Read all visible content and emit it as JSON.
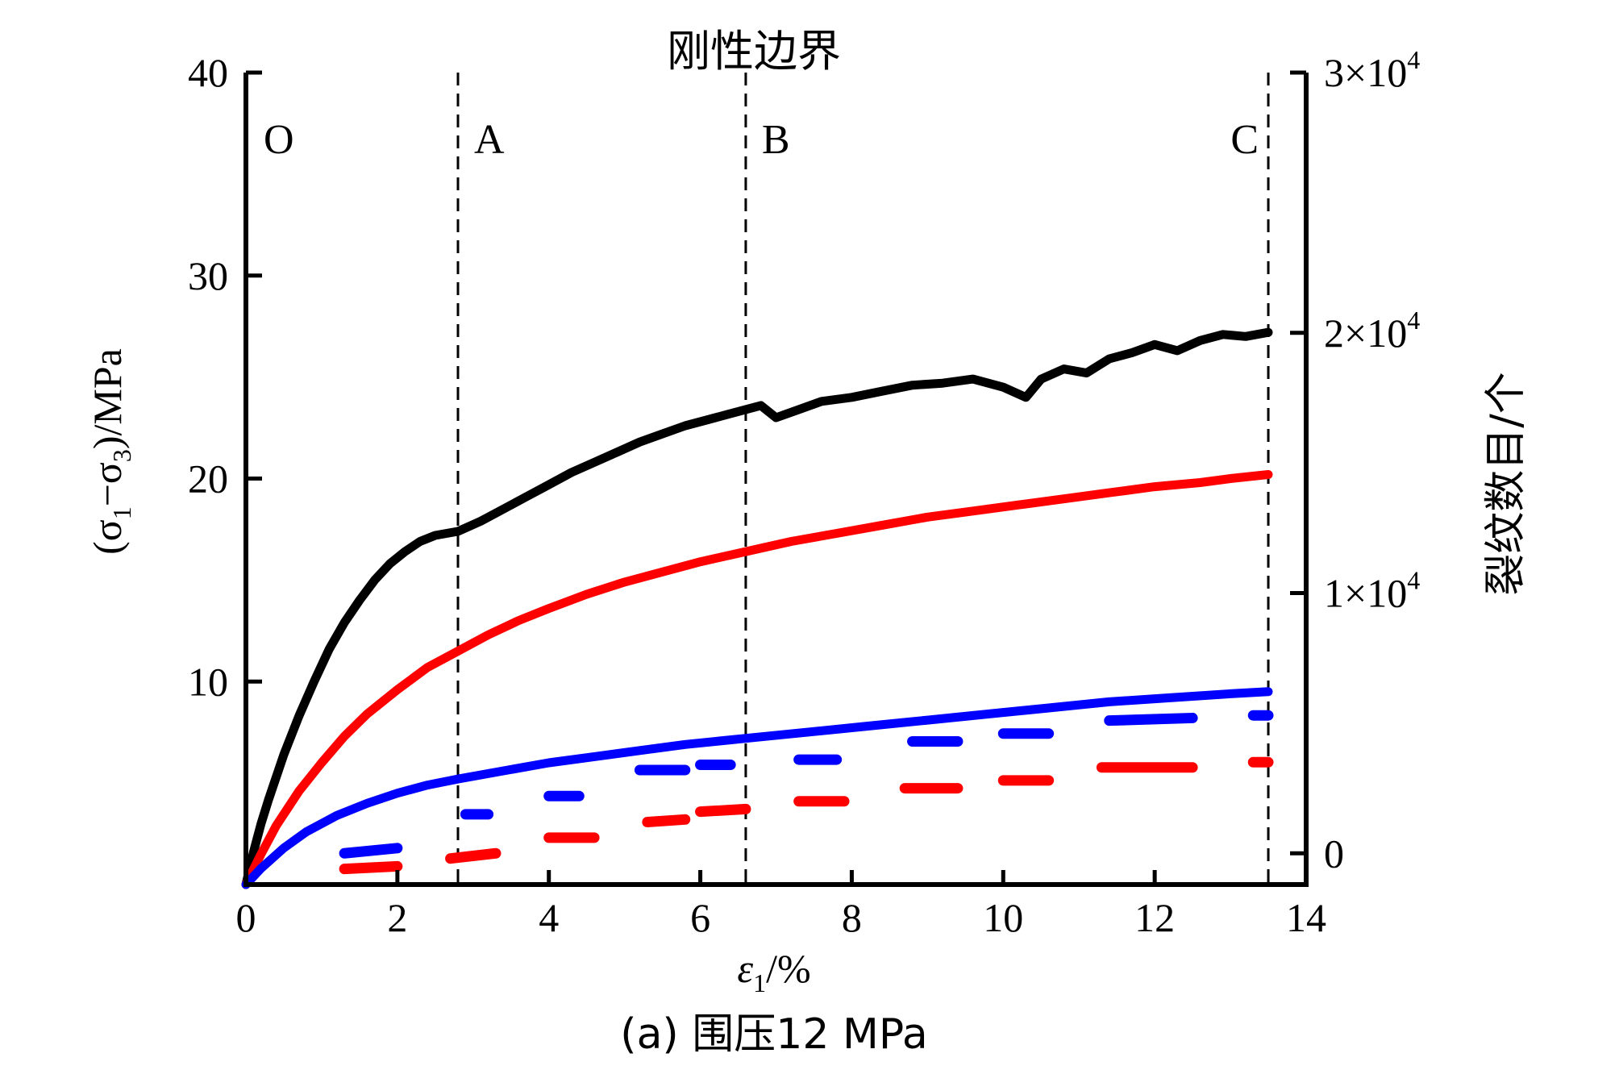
{
  "chart_data": {
    "type": "line",
    "title": "刚性边界",
    "caption": "(a) 围压12 MPa",
    "xlabel": {
      "prefix": "ε",
      "sub": "1",
      "suffix": "/%"
    },
    "ylabel_left": {
      "open": "(σ",
      "sub1": "1",
      "minus": "−σ",
      "sub2": "3",
      "close": ")/MPa"
    },
    "ylabel_right": "裂纹数目/个",
    "xlim": [
      0,
      14
    ],
    "ylim_left": [
      0,
      40
    ],
    "ylim_right": [
      -1200,
      30000
    ],
    "x_ticks": [
      "0",
      "2",
      "4",
      "6",
      "8",
      "10",
      "12",
      "14"
    ],
    "y_left_ticks": [
      "10",
      "20",
      "30",
      "40"
    ],
    "y_right_ticks": [
      {
        "value": 0,
        "label": "0",
        "exp": ""
      },
      {
        "value": 10000,
        "label": "1×10",
        "exp": "4"
      },
      {
        "value": 20000,
        "label": "2×10",
        "exp": "4"
      },
      {
        "value": 30000,
        "label": "3×10",
        "exp": "4"
      }
    ],
    "stage_lines": [
      {
        "label": "O",
        "x": 0.0
      },
      {
        "label": "A",
        "x": 2.8
      },
      {
        "label": "B",
        "x": 6.6
      },
      {
        "label": "C",
        "x": 13.5
      }
    ],
    "series": [
      {
        "color": "#000000",
        "axis": "left",
        "style": "solid",
        "points": [
          [
            0,
            0
          ],
          [
            0.1,
            1.6
          ],
          [
            0.2,
            3.0
          ],
          [
            0.3,
            4.2
          ],
          [
            0.5,
            6.4
          ],
          [
            0.7,
            8.3
          ],
          [
            0.9,
            10.0
          ],
          [
            1.1,
            11.6
          ],
          [
            1.3,
            12.9
          ],
          [
            1.5,
            14.0
          ],
          [
            1.7,
            15.0
          ],
          [
            1.9,
            15.8
          ],
          [
            2.1,
            16.4
          ],
          [
            2.3,
            16.9
          ],
          [
            2.5,
            17.2
          ],
          [
            2.8,
            17.4
          ],
          [
            3.1,
            17.9
          ],
          [
            3.4,
            18.5
          ],
          [
            3.7,
            19.1
          ],
          [
            4.0,
            19.7
          ],
          [
            4.3,
            20.3
          ],
          [
            4.6,
            20.8
          ],
          [
            4.9,
            21.3
          ],
          [
            5.2,
            21.8
          ],
          [
            5.5,
            22.2
          ],
          [
            5.8,
            22.6
          ],
          [
            6.1,
            22.9
          ],
          [
            6.4,
            23.2
          ],
          [
            6.6,
            23.4
          ],
          [
            6.8,
            23.6
          ],
          [
            7.0,
            23.0
          ],
          [
            7.3,
            23.4
          ],
          [
            7.6,
            23.8
          ],
          [
            8.0,
            24.0
          ],
          [
            8.4,
            24.3
          ],
          [
            8.8,
            24.6
          ],
          [
            9.2,
            24.7
          ],
          [
            9.6,
            24.9
          ],
          [
            10.0,
            24.5
          ],
          [
            10.3,
            24.0
          ],
          [
            10.5,
            24.9
          ],
          [
            10.8,
            25.4
          ],
          [
            11.1,
            25.2
          ],
          [
            11.4,
            25.9
          ],
          [
            11.7,
            26.2
          ],
          [
            12.0,
            26.6
          ],
          [
            12.3,
            26.3
          ],
          [
            12.6,
            26.8
          ],
          [
            12.9,
            27.1
          ],
          [
            13.2,
            27.0
          ],
          [
            13.5,
            27.2
          ]
        ]
      },
      {
        "color": "#ff0000",
        "axis": "left",
        "style": "solid",
        "points": [
          [
            0,
            0
          ],
          [
            0.2,
            1.5
          ],
          [
            0.4,
            2.9
          ],
          [
            0.7,
            4.6
          ],
          [
            1.0,
            6.0
          ],
          [
            1.3,
            7.3
          ],
          [
            1.6,
            8.4
          ],
          [
            2.0,
            9.6
          ],
          [
            2.4,
            10.7
          ],
          [
            2.8,
            11.5
          ],
          [
            3.2,
            12.3
          ],
          [
            3.6,
            13.0
          ],
          [
            4.0,
            13.6
          ],
          [
            4.5,
            14.3
          ],
          [
            5.0,
            14.9
          ],
          [
            5.5,
            15.4
          ],
          [
            6.0,
            15.9
          ],
          [
            6.6,
            16.4
          ],
          [
            7.2,
            16.9
          ],
          [
            7.8,
            17.3
          ],
          [
            8.4,
            17.7
          ],
          [
            9.0,
            18.1
          ],
          [
            9.6,
            18.4
          ],
          [
            10.2,
            18.7
          ],
          [
            10.8,
            19.0
          ],
          [
            11.4,
            19.3
          ],
          [
            12.0,
            19.6
          ],
          [
            12.6,
            19.8
          ],
          [
            13.0,
            20.0
          ],
          [
            13.5,
            20.2
          ]
        ]
      },
      {
        "color": "#0000ff",
        "axis": "left",
        "style": "solid",
        "points": [
          [
            0,
            0
          ],
          [
            0.2,
            0.8
          ],
          [
            0.5,
            1.8
          ],
          [
            0.8,
            2.6
          ],
          [
            1.2,
            3.4
          ],
          [
            1.6,
            4.0
          ],
          [
            2.0,
            4.5
          ],
          [
            2.4,
            4.9
          ],
          [
            2.8,
            5.2
          ],
          [
            3.4,
            5.6
          ],
          [
            4.0,
            6.0
          ],
          [
            4.6,
            6.3
          ],
          [
            5.2,
            6.6
          ],
          [
            5.8,
            6.9
          ],
          [
            6.6,
            7.2
          ],
          [
            7.4,
            7.5
          ],
          [
            8.2,
            7.8
          ],
          [
            9.0,
            8.1
          ],
          [
            9.8,
            8.4
          ],
          [
            10.6,
            8.7
          ],
          [
            11.4,
            9.0
          ],
          [
            12.2,
            9.2
          ],
          [
            13.0,
            9.4
          ],
          [
            13.5,
            9.5
          ]
        ]
      },
      {
        "color": "#0000ff",
        "axis": "right",
        "style": "segments",
        "segments": [
          [
            [
              1.3,
              0
            ],
            [
              2.0,
              200
            ]
          ],
          [
            [
              2.9,
              1500
            ],
            [
              3.2,
              1500
            ]
          ],
          [
            [
              4.0,
              2200
            ],
            [
              4.4,
              2200
            ]
          ],
          [
            [
              5.2,
              3200
            ],
            [
              5.8,
              3200
            ]
          ],
          [
            [
              6.0,
              3400
            ],
            [
              6.4,
              3400
            ]
          ],
          [
            [
              7.3,
              3600
            ],
            [
              7.8,
              3600
            ]
          ],
          [
            [
              8.8,
              4300
            ],
            [
              9.4,
              4300
            ]
          ],
          [
            [
              10.0,
              4600
            ],
            [
              10.6,
              4600
            ]
          ],
          [
            [
              11.4,
              5100
            ],
            [
              12.5,
              5200
            ]
          ],
          [
            [
              13.3,
              5300
            ],
            [
              13.5,
              5300
            ]
          ]
        ]
      },
      {
        "color": "#ff0000",
        "axis": "right",
        "style": "segments",
        "segments": [
          [
            [
              1.3,
              -600
            ],
            [
              2.0,
              -500
            ]
          ],
          [
            [
              2.7,
              -200
            ],
            [
              3.3,
              0
            ]
          ],
          [
            [
              4.0,
              600
            ],
            [
              4.6,
              600
            ]
          ],
          [
            [
              5.3,
              1200
            ],
            [
              5.8,
              1300
            ]
          ],
          [
            [
              6.0,
              1600
            ],
            [
              6.6,
              1700
            ]
          ],
          [
            [
              7.3,
              2000
            ],
            [
              7.9,
              2000
            ]
          ],
          [
            [
              8.7,
              2500
            ],
            [
              9.4,
              2500
            ]
          ],
          [
            [
              10.0,
              2800
            ],
            [
              10.6,
              2800
            ]
          ],
          [
            [
              11.3,
              3300
            ],
            [
              12.5,
              3300
            ]
          ],
          [
            [
              13.3,
              3500
            ],
            [
              13.5,
              3500
            ]
          ]
        ]
      }
    ]
  }
}
